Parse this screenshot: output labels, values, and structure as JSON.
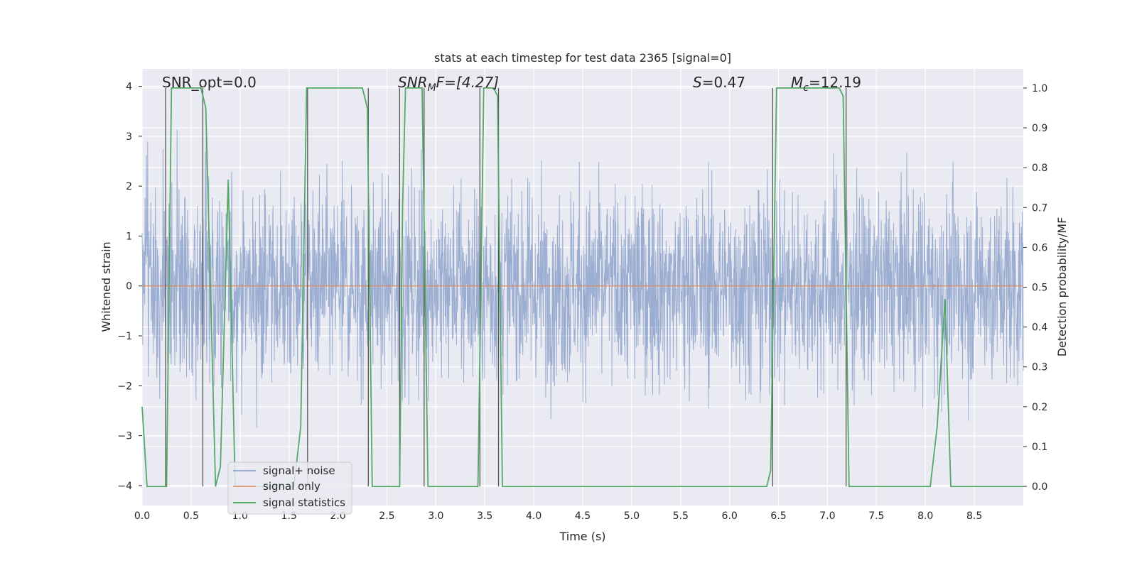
{
  "chart_data": {
    "type": "line",
    "title": "stats at each timestep for test data 2365 [signal=0]",
    "xlabel": "Time (s)",
    "ylabel": "Whitened strain",
    "y2label": "Detection probability/MF",
    "xlim": [
      0.0,
      9.0
    ],
    "ylim": [
      -4.4,
      4.35
    ],
    "y2lim": [
      -0.048,
      1.048
    ],
    "xticks": [
      "0.0",
      "0.5",
      "1.0",
      "1.5",
      "2.0",
      "2.5",
      "3.0",
      "3.5",
      "4.0",
      "4.5",
      "5.0",
      "5.5",
      "6.0",
      "6.5",
      "7.0",
      "7.5",
      "8.0",
      "8.5"
    ],
    "yticks": [
      "4",
      "3",
      "2",
      "1",
      "0",
      "−1",
      "−2",
      "−3",
      "−4"
    ],
    "y2ticks": [
      "1.0",
      "0.9",
      "0.8",
      "0.7",
      "0.6",
      "0.5",
      "0.4",
      "0.3",
      "0.2",
      "0.1",
      "0.0"
    ],
    "grid": true,
    "legend_position": "lower-left",
    "annotations": {
      "snr_opt": "SNR_opt=0.0",
      "snr_mf_base": "SNR",
      "snr_mf_sub": "M",
      "snr_mf_rest": "F=[4.27]",
      "s_var": "S",
      "s_val": "=0.47",
      "mc_var": "M",
      "mc_sub": "c",
      "mc_val": "=12.19"
    },
    "series": [
      {
        "name": "signal+ noise",
        "color": "#4c72b0",
        "band": {
          "typical_lower": -1.6,
          "typical_upper": 1.6,
          "peak_min": -3.95,
          "peak_max": 3.85
        },
        "note_points": []
      },
      {
        "name": "signal only",
        "color": "#dd8452",
        "x": [
          0.0,
          9.0
        ],
        "y": [
          0.0,
          0.0
        ]
      },
      {
        "name": "signal statistics",
        "color": "#55a868",
        "axis": "right",
        "x": [
          0.0,
          0.05,
          0.25,
          0.3,
          0.6,
          0.65,
          0.75,
          0.8,
          0.88,
          0.95,
          1.0,
          1.55,
          1.62,
          1.68,
          1.75,
          2.25,
          2.3,
          2.35,
          2.63,
          2.66,
          2.69,
          2.86,
          2.92,
          2.97,
          3.43,
          3.46,
          3.49,
          3.59,
          3.63,
          3.68,
          3.75,
          6.38,
          6.42,
          6.48,
          7.12,
          7.16,
          7.22,
          8.05,
          8.12,
          8.2,
          8.26,
          8.33,
          8.45,
          8.5,
          9.0
        ],
        "y": [
          0.2,
          0.0,
          0.0,
          1.0,
          1.0,
          0.95,
          0.0,
          0.05,
          0.77,
          0.0,
          0.0,
          0.0,
          0.15,
          1.0,
          1.0,
          1.0,
          0.95,
          0.0,
          0.0,
          0.7,
          1.0,
          1.0,
          0.0,
          0.0,
          0.0,
          0.5,
          1.0,
          1.0,
          0.98,
          0.0,
          0.0,
          0.0,
          0.04,
          1.0,
          1.0,
          0.98,
          0.0,
          0.0,
          0.15,
          0.47,
          0.0,
          0.0,
          0.0,
          0.0,
          0.0
        ]
      }
    ],
    "vlines_x": [
      0.24,
      0.62,
      1.69,
      2.31,
      2.63,
      2.88,
      3.45,
      3.64,
      6.44,
      7.19
    ]
  }
}
